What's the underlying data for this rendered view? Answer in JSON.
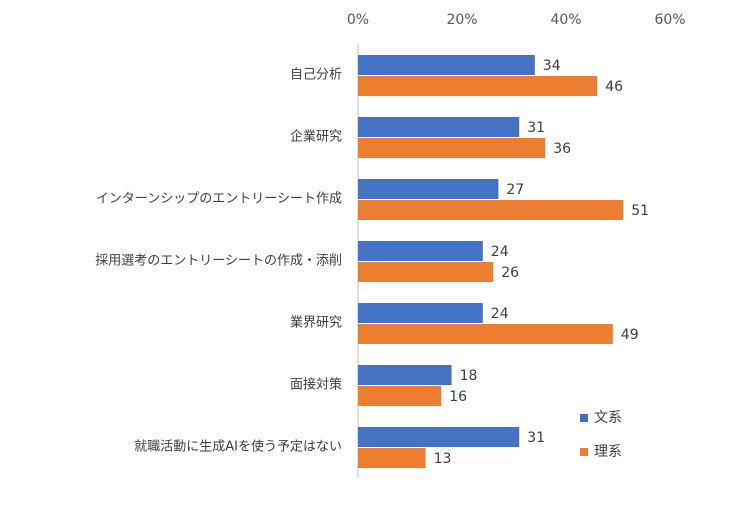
{
  "chart_data": {
    "type": "hbar",
    "categories": [
      "自己分析",
      "企業研究",
      "インターンシップのエントリーシート作成",
      "採用選考のエントリーシートの作成・添削",
      "業界研究",
      "面接対策",
      "就職活動に生成AIを使う予定はない"
    ],
    "series": [
      {
        "name": "文系",
        "color": "#4472c4",
        "values": [
          34,
          31,
          27,
          24,
          24,
          18,
          31
        ]
      },
      {
        "name": "理系",
        "color": "#ed7d31",
        "values": [
          46,
          36,
          51,
          26,
          49,
          16,
          13
        ]
      }
    ],
    "xlim": [
      0,
      60
    ],
    "xticks": [
      {
        "value": 0,
        "label": "0%"
      },
      {
        "value": 20,
        "label": "20%"
      },
      {
        "value": 40,
        "label": "40%"
      },
      {
        "value": 60,
        "label": "60%"
      }
    ],
    "grid": false
  }
}
